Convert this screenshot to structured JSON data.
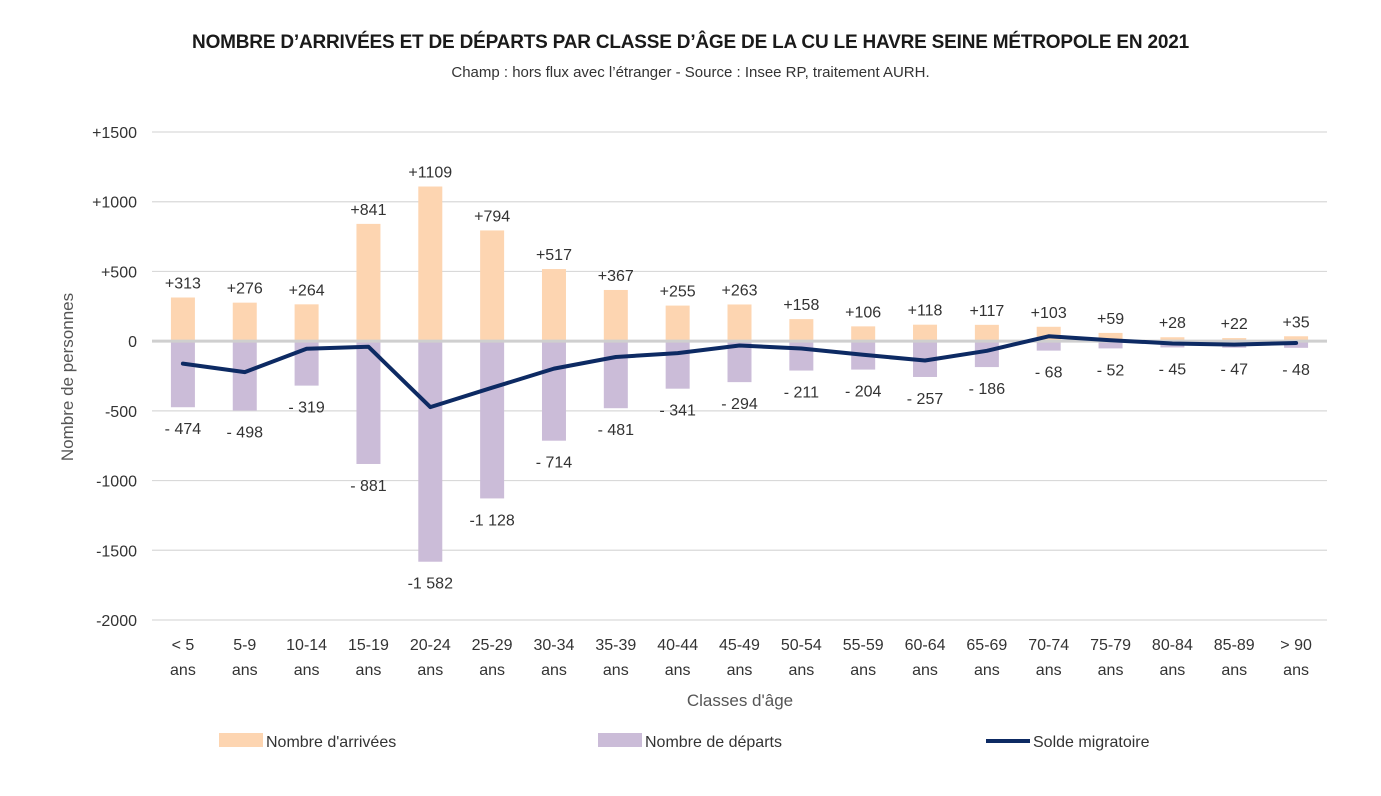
{
  "chart_data": {
    "type": "bar",
    "title": "NOMBRE D’ARRIVÉES ET DE DÉPARTS PAR CLASSE D’ÂGE DE LA CU LE HAVRE SEINE MÉTROPOLE EN 2021",
    "subtitle": "Champ : hors flux avec l’étranger - Source : Insee RP, traitement AURH.",
    "xlabel": "Classes d'âge",
    "ylabel": "Nombre de personnes",
    "ylim": [
      -2000,
      1500
    ],
    "yticks": [
      1500,
      1000,
      500,
      0,
      -500,
      -1000,
      -1500,
      -2000
    ],
    "ytick_labels": [
      "+1500",
      "+1000",
      "+500",
      "0",
      "-500",
      "-1000",
      "-1500",
      "-2000"
    ],
    "grid": true,
    "legend_position": "bottom",
    "categories": [
      [
        "< 5",
        "ans"
      ],
      [
        "5-9",
        "ans"
      ],
      [
        "10-14",
        "ans"
      ],
      [
        "15-19",
        "ans"
      ],
      [
        "20-24",
        "ans"
      ],
      [
        "25-29",
        "ans"
      ],
      [
        "30-34",
        "ans"
      ],
      [
        "35-39",
        "ans"
      ],
      [
        "40-44",
        "ans"
      ],
      [
        "45-49",
        "ans"
      ],
      [
        "50-54",
        "ans"
      ],
      [
        "55-59",
        "ans"
      ],
      [
        "60-64",
        "ans"
      ],
      [
        "65-69",
        "ans"
      ],
      [
        "70-74",
        "ans"
      ],
      [
        "75-79",
        "ans"
      ],
      [
        "80-84",
        "ans"
      ],
      [
        "85-89",
        "ans"
      ],
      [
        "> 90",
        "ans"
      ]
    ],
    "series": [
      {
        "name": "Nombre d'arrivées",
        "kind": "bar",
        "color": "#fdd5b1",
        "values": [
          313,
          276,
          264,
          841,
          1109,
          794,
          517,
          367,
          255,
          263,
          158,
          106,
          118,
          117,
          103,
          59,
          28,
          22,
          35
        ],
        "labels": [
          "+313",
          "+276",
          "+264",
          "+841",
          "+1109",
          "+794",
          "+517",
          "+367",
          "+255",
          "+263",
          "+158",
          "+106",
          "+118",
          "+117",
          "+103",
          "+59",
          "+28",
          "+22",
          "+35"
        ]
      },
      {
        "name": "Nombre de départs",
        "kind": "bar",
        "color": "#cbbcd8",
        "values": [
          -474,
          -498,
          -319,
          -881,
          -1582,
          -1128,
          -714,
          -481,
          -341,
          -294,
          -211,
          -204,
          -257,
          -186,
          -68,
          -52,
          -45,
          -47,
          -48
        ],
        "labels": [
          "- 474",
          "- 498",
          "- 319",
          "- 881",
          "-1 582",
          "-1 128",
          "- 714",
          "- 481",
          "- 341",
          "- 294",
          "- 211",
          "- 204",
          "- 257",
          "- 186",
          "- 68",
          "- 52",
          "- 45",
          "- 47",
          "- 48"
        ]
      },
      {
        "name": "Solde migratoire",
        "kind": "line",
        "color": "#0d2a63",
        "values": [
          -161,
          -222,
          -55,
          -40,
          -473,
          -334,
          -197,
          -114,
          -86,
          -31,
          -53,
          -98,
          -139,
          -69,
          35,
          7,
          -17,
          -25,
          -13
        ]
      }
    ]
  }
}
